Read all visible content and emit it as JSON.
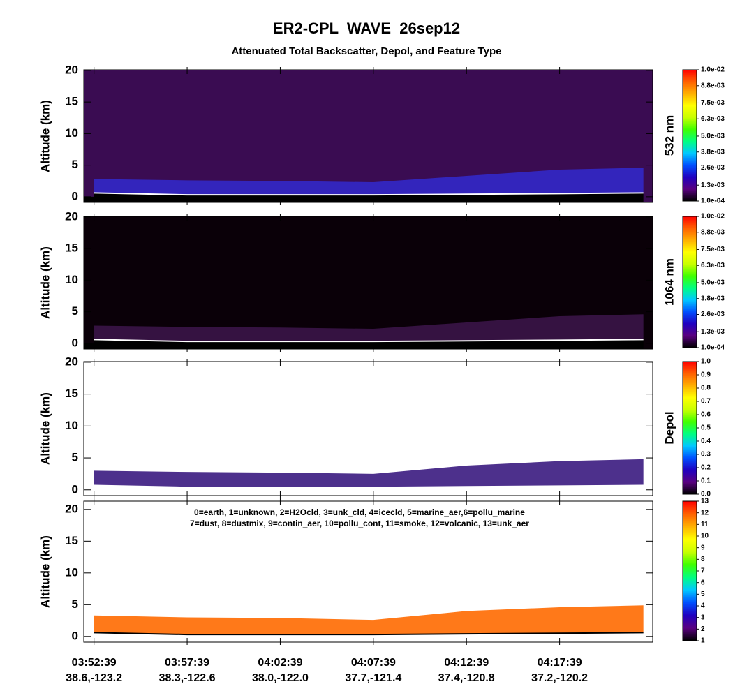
{
  "figure": {
    "title": "ER2-CPL  WAVE  26sep12",
    "subtitle": "Attenuated Total Backscatter, Depol, and Feature Type",
    "xlim": [
      -0.11,
      6.0
    ],
    "xticks": [
      {
        "value": 0,
        "label": "03:52:39"
      },
      {
        "value": 1,
        "label": "03:57:39"
      },
      {
        "value": 2,
        "label": "04:02:39"
      },
      {
        "value": 3,
        "label": "04:07:39"
      },
      {
        "value": 4,
        "label": "04:12:39"
      },
      {
        "value": 5,
        "label": "04:17:39"
      }
    ],
    "xtick_sublabels": [
      "38.6,-123.2",
      "38.3,-122.6",
      "38.0,-122.0",
      "37.7,-121.4",
      "37.4,-120.8",
      "37.2,-120.2"
    ]
  },
  "chart_data": [
    {
      "type": "curtain",
      "ylabel": "Altitude (km)",
      "ylim": [
        -0.9,
        20.1
      ],
      "yticks": [
        0,
        5,
        10,
        15,
        20
      ],
      "background": "#3a0c52",
      "ground": "#000000",
      "x": [
        0,
        1,
        2,
        3,
        4,
        5,
        5.9
      ],
      "layer_top": [
        2.8,
        2.6,
        2.5,
        2.3,
        3.3,
        4.3,
        4.6
      ],
      "layer_color": "#3328c8",
      "surface": [
        0.6,
        0.3,
        0.3,
        0.3,
        0.4,
        0.5,
        0.6
      ],
      "surface_color": "#ffffff",
      "colorbar": {
        "label": "532 nm",
        "clim": [
          0.0001,
          0.01
        ],
        "ticks": [
          {
            "value": 0.0001,
            "label": "1.0e-04"
          },
          {
            "value": 0.0013,
            "label": "1.3e-03"
          },
          {
            "value": 0.0026,
            "label": "2.6e-03"
          },
          {
            "value": 0.0038,
            "label": "3.8e-03"
          },
          {
            "value": 0.005,
            "label": "5.0e-03"
          },
          {
            "value": 0.0063,
            "label": "6.3e-03"
          },
          {
            "value": 0.0075,
            "label": "7.5e-03"
          },
          {
            "value": 0.0088,
            "label": "8.8e-03"
          },
          {
            "value": 0.01,
            "label": "1.0e-02"
          }
        ],
        "colors": [
          "#000000",
          "#5a0080",
          "#2000c0",
          "#0050ff",
          "#00c8ff",
          "#00ff80",
          "#40ff00",
          "#c8ff00",
          "#ffff00",
          "#ffb000",
          "#ff6000",
          "#ff0000"
        ]
      }
    },
    {
      "type": "curtain",
      "ylabel": "Altitude (km)",
      "ylim": [
        -0.9,
        20.1
      ],
      "yticks": [
        0,
        5,
        10,
        15,
        20
      ],
      "background": "#0a0008",
      "ground": "#000000",
      "x": [
        0,
        1,
        2,
        3,
        4,
        5,
        5.9
      ],
      "layer_top": [
        2.8,
        2.6,
        2.5,
        2.3,
        3.3,
        4.3,
        4.6
      ],
      "layer_color": "#3a1448",
      "surface": [
        0.6,
        0.3,
        0.3,
        0.3,
        0.4,
        0.5,
        0.6
      ],
      "surface_color": "#ffffff",
      "colorbar": {
        "label": "1064 nm",
        "clim": [
          0.0001,
          0.01
        ],
        "ticks": [
          {
            "value": 0.0001,
            "label": "1.0e-04"
          },
          {
            "value": 0.0013,
            "label": "1.3e-03"
          },
          {
            "value": 0.0026,
            "label": "2.6e-03"
          },
          {
            "value": 0.0038,
            "label": "3.8e-03"
          },
          {
            "value": 0.005,
            "label": "5.0e-03"
          },
          {
            "value": 0.0063,
            "label": "6.3e-03"
          },
          {
            "value": 0.0075,
            "label": "7.5e-03"
          },
          {
            "value": 0.0088,
            "label": "8.8e-03"
          },
          {
            "value": 0.01,
            "label": "1.0e-02"
          }
        ],
        "colors": [
          "#000000",
          "#5a0080",
          "#2000c0",
          "#0050ff",
          "#00c8ff",
          "#00ff80",
          "#40ff00",
          "#c8ff00",
          "#ffff00",
          "#ffb000",
          "#ff6000",
          "#ff0000"
        ]
      }
    },
    {
      "type": "curtain",
      "ylabel": "Altitude (km)",
      "ylim": [
        -0.9,
        20.1
      ],
      "yticks": [
        0,
        5,
        10,
        15,
        20
      ],
      "background": "#ffffff",
      "x": [
        0,
        1,
        2,
        3,
        4,
        5,
        5.9
      ],
      "layer_top": [
        3.0,
        2.8,
        2.7,
        2.5,
        3.8,
        4.5,
        4.8
      ],
      "layer_color": "#3a1a80",
      "surface": [
        0.8,
        0.5,
        0.5,
        0.5,
        0.6,
        0.7,
        0.8
      ],
      "colorbar": {
        "label": "Depol",
        "clim": [
          0,
          1
        ],
        "ticks": [
          {
            "value": 0,
            "label": "0.0"
          },
          0.1,
          0.2,
          0.3,
          0.4,
          0.5,
          0.6,
          0.7,
          0.8,
          0.9,
          {
            "value": 1,
            "label": "1.0"
          }
        ],
        "colors": [
          "#000000",
          "#5a0080",
          "#2000c0",
          "#0050ff",
          "#00c8ff",
          "#00ff80",
          "#40ff00",
          "#c8ff00",
          "#ffff00",
          "#ffb000",
          "#ff6000",
          "#ff0000"
        ]
      }
    },
    {
      "type": "curtain",
      "ylabel": "Altitude (km)",
      "ylim": [
        -0.9,
        21.3
      ],
      "yticks": [
        0,
        5,
        10,
        15,
        20
      ],
      "background": "#ffffff",
      "notes": [
        "0=earth, 1=unknown, 2=H2Ocld, 3=unk_cld, 4=icecld, 5=marine_aer,6=pollu_marine",
        "7=dust, 8=dustmix, 9=contin_aer, 10=pollu_cont, 11=smoke, 12=volcanic, 13=unk_aer"
      ],
      "x": [
        0,
        1,
        2,
        3,
        4,
        5,
        5.9
      ],
      "layer_top": [
        3.3,
        3.0,
        2.9,
        2.6,
        4.0,
        4.6,
        4.9
      ],
      "layer_color": "#ff6a00",
      "surface": [
        0.6,
        0.3,
        0.3,
        0.3,
        0.4,
        0.5,
        0.6
      ],
      "surface_color": "#000000",
      "colorbar": {
        "clim": [
          1,
          13
        ],
        "ticks": [
          1,
          2,
          3,
          4,
          5,
          6,
          7,
          8,
          9,
          10,
          11,
          12,
          13
        ],
        "colors": [
          "#000000",
          "#5a0080",
          "#2000c0",
          "#0050ff",
          "#00c8ff",
          "#00ff80",
          "#40ff00",
          "#c8ff00",
          "#ffff00",
          "#ffb000",
          "#ff6000",
          "#ff0000"
        ]
      }
    }
  ]
}
